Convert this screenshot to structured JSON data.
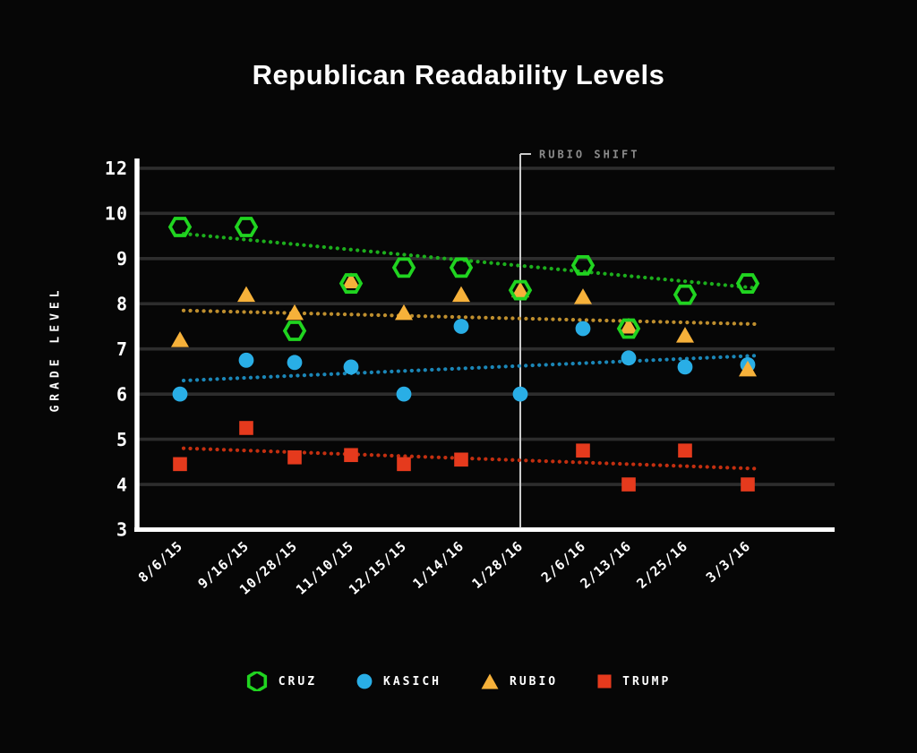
{
  "page": {
    "background": "#060606"
  },
  "chart_data": {
    "type": "scatter",
    "title": "Republican Readability Levels",
    "xlabel": "",
    "ylabel": "GRADE LEVEL",
    "y_tick_labels": [
      "12",
      "10",
      "9",
      "8",
      "7",
      "6",
      "5",
      "4",
      "3"
    ],
    "y_axis_note": "value 11 is omitted between 12 and 10; gridlines evenly spaced",
    "ylim": [
      3,
      12
    ],
    "grid": "horizontal",
    "legend_position": "bottom",
    "categories": [
      "8/6/15",
      "9/16/15",
      "10/28/15",
      "11/10/15",
      "12/15/15",
      "1/14/16",
      "1/28/16",
      "2/6/16",
      "2/13/16",
      "2/25/16",
      "3/3/16"
    ],
    "series": [
      {
        "name": "CRUZ",
        "marker": "hexagon-outline",
        "color": "#20d420",
        "trend_color": "#1cae1c",
        "values": [
          9.7,
          9.7,
          7.4,
          8.45,
          8.8,
          8.8,
          8.3,
          8.85,
          7.45,
          8.2,
          8.45
        ],
        "trend": {
          "start": 9.55,
          "end": 8.35
        }
      },
      {
        "name": "KASICH",
        "marker": "circle",
        "color": "#29aee6",
        "trend_color": "#1b87b8",
        "values": [
          6.0,
          6.75,
          6.7,
          6.6,
          6.0,
          7.5,
          6.0,
          7.45,
          6.8,
          6.6,
          6.65
        ],
        "trend": {
          "start": 6.3,
          "end": 6.85
        }
      },
      {
        "name": "RUBIO",
        "marker": "triangle",
        "color": "#f6b13a",
        "trend_color": "#bf8f2e",
        "values": [
          7.2,
          8.2,
          7.8,
          8.5,
          7.8,
          8.2,
          8.3,
          8.15,
          7.5,
          7.3,
          6.55
        ],
        "trend": {
          "start": 7.85,
          "end": 7.55
        }
      },
      {
        "name": "TRUMP",
        "marker": "square",
        "color": "#e53a1d",
        "trend_color": "#c32f10",
        "values": [
          4.45,
          5.25,
          4.6,
          4.65,
          4.45,
          4.55,
          null,
          4.75,
          4.0,
          4.75,
          4.0
        ],
        "trend": {
          "start": 4.8,
          "end": 4.35
        }
      }
    ],
    "annotation": {
      "label": "RUBIO SHIFT",
      "category": "1/28/16"
    },
    "colors": {
      "background": "#060606",
      "gridline": "#2d2d2d",
      "axis": "#ffffff",
      "tick_text": "#ffffff",
      "annotation_line": "#cbcbcb",
      "annotation_text": "#8c8c8c"
    }
  }
}
